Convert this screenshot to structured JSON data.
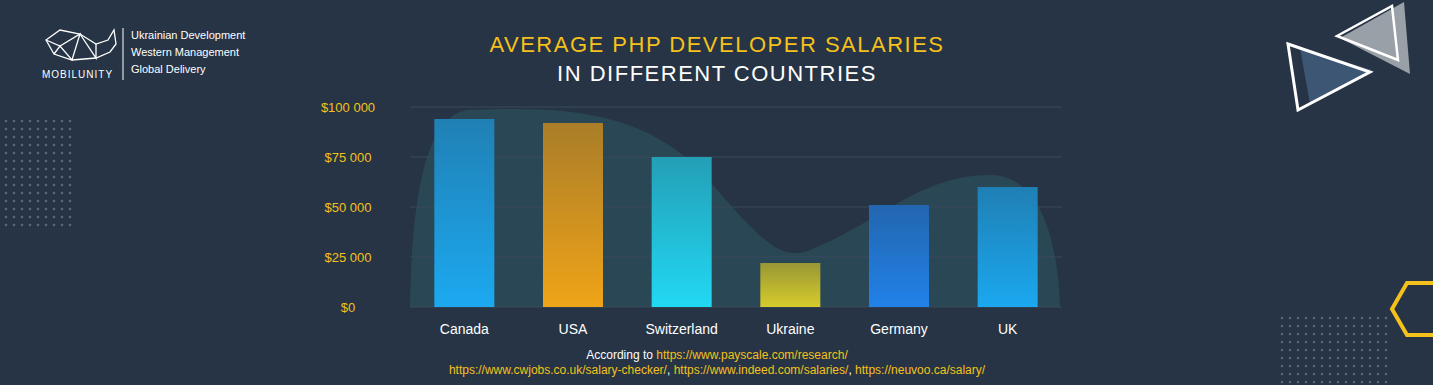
{
  "chart_data": {
    "type": "bar",
    "title": "AVERAGE PHP DEVELOPER SALARIES",
    "subtitle": "IN DIFFERENT COUNTRIES",
    "categories": [
      "Canada",
      "USA",
      "Switzerland",
      "Ukraine",
      "Germany",
      "UK"
    ],
    "values": [
      94000,
      92000,
      75000,
      22000,
      51000,
      60000
    ],
    "colors": [
      "#1ca9f0",
      "#f0a418",
      "#22d8f3",
      "#d6cc2c",
      "#2181e8",
      "#1ba8ef"
    ],
    "ylim": [
      0,
      100000
    ],
    "yticks": [
      {
        "value": 0,
        "label": "$0"
      },
      {
        "value": 25000,
        "label": "$25 000"
      },
      {
        "value": 50000,
        "label": "$50 000"
      },
      {
        "value": 75000,
        "label": "$75 000"
      },
      {
        "value": 100000,
        "label": "$100 000"
      }
    ],
    "grid": true,
    "brand": "MOBILUNITY",
    "brand_tagline": [
      "Ukrainian Development",
      "Western Management",
      "Global Delivery"
    ],
    "source_lines": [
      "According to https://www.payscale.com/research/",
      "https://www.cwjobs.co.uk/salary-checker/, https://www.indeed.com/salaries/, https://neuvoo.ca/salary/"
    ]
  }
}
